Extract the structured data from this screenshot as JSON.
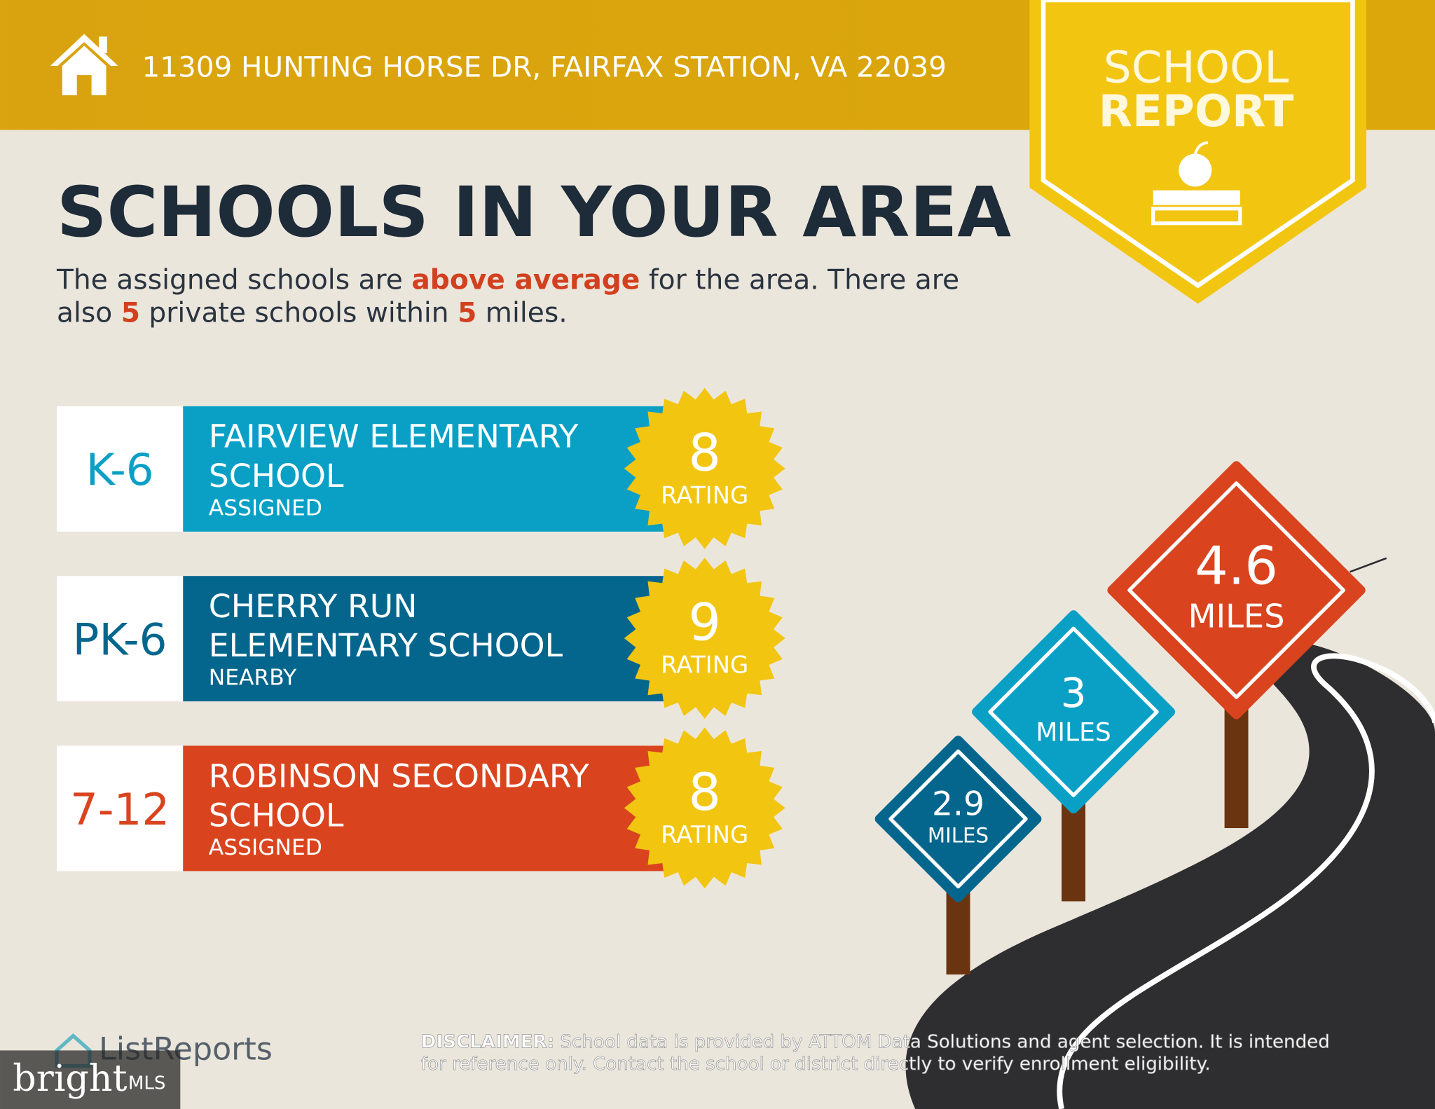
{
  "header": {
    "address": "11309 HUNTING HORSE DR, FAIRFAX STATION, VA 22039",
    "badge": [
      "SCHOOL",
      "REPORT"
    ]
  },
  "title": "SCHOOLS IN YOUR AREA",
  "summary": [
    [
      "The assigned schools are ",
      "above average",
      " for the area. There are"
    ],
    [
      "also ",
      "5",
      " private schools within ",
      "5",
      " miles."
    ]
  ],
  "schools": [
    {
      "grade": "K-6",
      "name": [
        "FAIRVIEW ELEMENTARY",
        "SCHOOL"
      ],
      "status": "ASSIGNED",
      "rating": 8,
      "rating_label": "RATING",
      "color": "#0aa0c6"
    },
    {
      "grade": "PK-6",
      "name": [
        "CHERRY RUN",
        "ELEMENTARY SCHOOL"
      ],
      "status": "NEARBY",
      "rating": 9,
      "rating_label": "RATING",
      "color": "#05668d"
    },
    {
      "grade": "7-12",
      "name": [
        "ROBINSON SECONDARY",
        "SCHOOL"
      ],
      "status": "ASSIGNED",
      "rating": 8,
      "rating_label": "RATING",
      "color": "#d9441f"
    }
  ],
  "distances": [
    {
      "value": 2.9,
      "unit": "MILES",
      "color": "#05668d"
    },
    {
      "value": 3,
      "unit": "MILES",
      "color": "#0aa0c6"
    },
    {
      "value": 4.6,
      "unit": "MILES",
      "color": "#d9441f"
    }
  ],
  "footer": {
    "logo": "ListReports",
    "disclaimer_label": "DISCLAIMER:",
    "disclaimer": [
      " School data is provided by ATTOM Data Solutions and agent selection. It is intended",
      "for reference only. Contact the school or district directly to verify enrollment eligibility."
    ],
    "watermark": [
      "bright",
      "MLS"
    ]
  }
}
